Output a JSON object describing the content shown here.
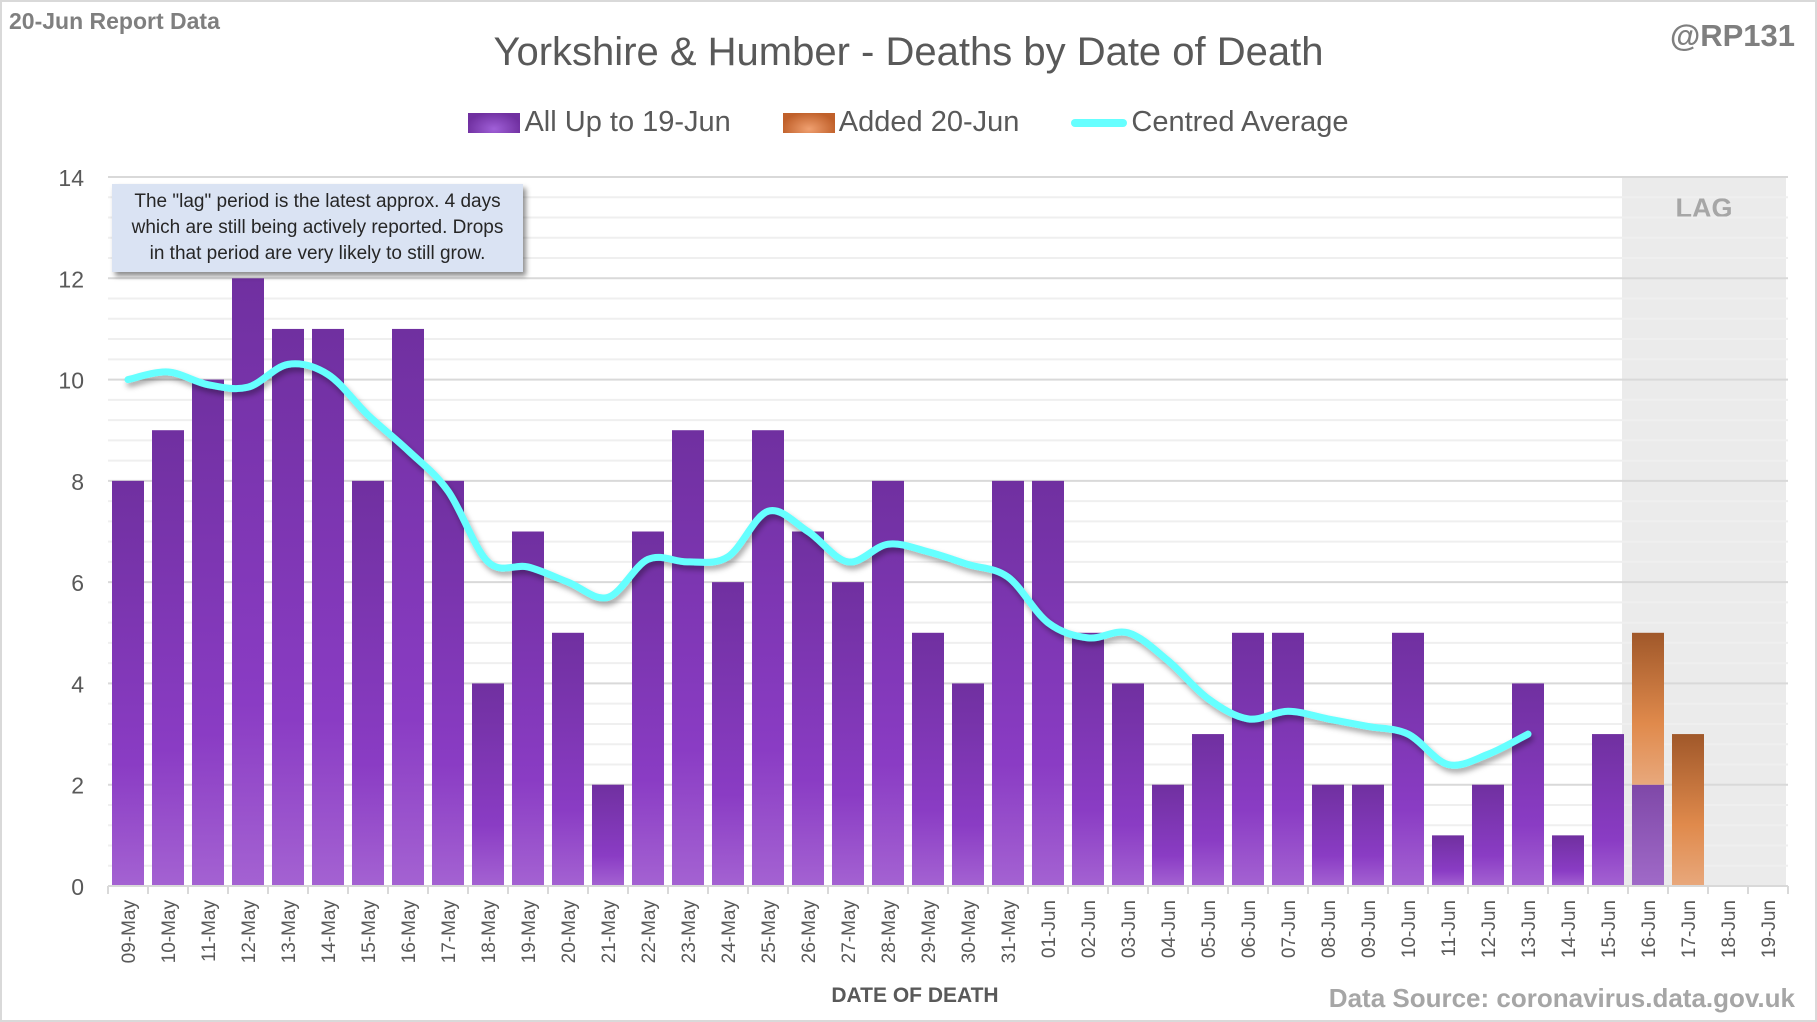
{
  "header": {
    "report_label": "20-Jun Report Data",
    "handle": "@RP131",
    "source": "Data Source: coronavirus.data.gov.uk"
  },
  "annotation": {
    "lines": [
      "The \"lag\" period is the latest approx. 4 days",
      "which are still being actively reported.  Drops",
      "in that period are very likely to still grow."
    ]
  },
  "colors": {
    "purple": "#7030a0",
    "orange": "#c55a11",
    "average": "#66ffff",
    "lag_shade": "#ebebeb",
    "annotation_bg": "#dae3f3"
  },
  "chart_data": {
    "type": "bar",
    "stacked": true,
    "title": "Yorkshire & Humber - Deaths by Date of Death",
    "xlabel": "DATE OF DEATH",
    "ylabel": "",
    "ylim": [
      0,
      14
    ],
    "yticks": [
      0,
      2,
      4,
      6,
      8,
      10,
      12,
      14
    ],
    "grid": true,
    "legend_position": "top-center",
    "lag_label": "LAG",
    "lag_categories": [
      "16-Jun",
      "17-Jun",
      "18-Jun",
      "19-Jun"
    ],
    "categories": [
      "09-May",
      "10-May",
      "11-May",
      "12-May",
      "13-May",
      "14-May",
      "15-May",
      "16-May",
      "17-May",
      "18-May",
      "19-May",
      "20-May",
      "21-May",
      "22-May",
      "23-May",
      "24-May",
      "25-May",
      "26-May",
      "27-May",
      "28-May",
      "29-May",
      "30-May",
      "31-May",
      "01-Jun",
      "02-Jun",
      "03-Jun",
      "04-Jun",
      "05-Jun",
      "06-Jun",
      "07-Jun",
      "08-Jun",
      "09-Jun",
      "10-Jun",
      "11-Jun",
      "12-Jun",
      "13-Jun",
      "14-Jun",
      "15-Jun",
      "16-Jun",
      "17-Jun",
      "18-Jun",
      "19-Jun"
    ],
    "series": [
      {
        "name": "All Up to 19-Jun",
        "kind": "bar",
        "values": [
          8,
          9,
          10,
          12,
          11,
          11,
          8,
          11,
          8,
          4,
          7,
          5,
          2,
          7,
          9,
          6,
          9,
          7,
          6,
          8,
          5,
          4,
          8,
          8,
          5,
          4,
          2,
          3,
          5,
          5,
          2,
          2,
          5,
          1,
          2,
          4,
          1,
          3,
          2,
          0,
          0,
          0
        ]
      },
      {
        "name": "Added 20-Jun",
        "kind": "bar",
        "values": [
          0,
          0,
          0,
          0,
          0,
          0,
          0,
          0,
          0,
          0,
          0,
          0,
          0,
          0,
          0,
          0,
          0,
          0,
          0,
          0,
          0,
          0,
          0,
          0,
          0,
          0,
          0,
          0,
          0,
          0,
          0,
          0,
          0,
          0,
          0,
          0,
          0,
          0,
          3,
          3,
          0,
          0
        ]
      },
      {
        "name": "Centred Average",
        "kind": "line",
        "values": [
          10.0,
          10.15,
          9.9,
          9.85,
          10.3,
          10.1,
          9.3,
          8.6,
          7.8,
          6.4,
          6.3,
          6.0,
          5.7,
          6.45,
          6.4,
          6.5,
          7.4,
          7.0,
          6.4,
          6.75,
          6.6,
          6.35,
          6.1,
          5.2,
          4.9,
          5.0,
          4.45,
          3.7,
          3.3,
          3.45,
          3.3,
          3.15,
          3.0,
          2.4,
          2.6,
          3.0,
          null,
          null,
          null,
          null,
          null,
          null
        ]
      }
    ]
  }
}
